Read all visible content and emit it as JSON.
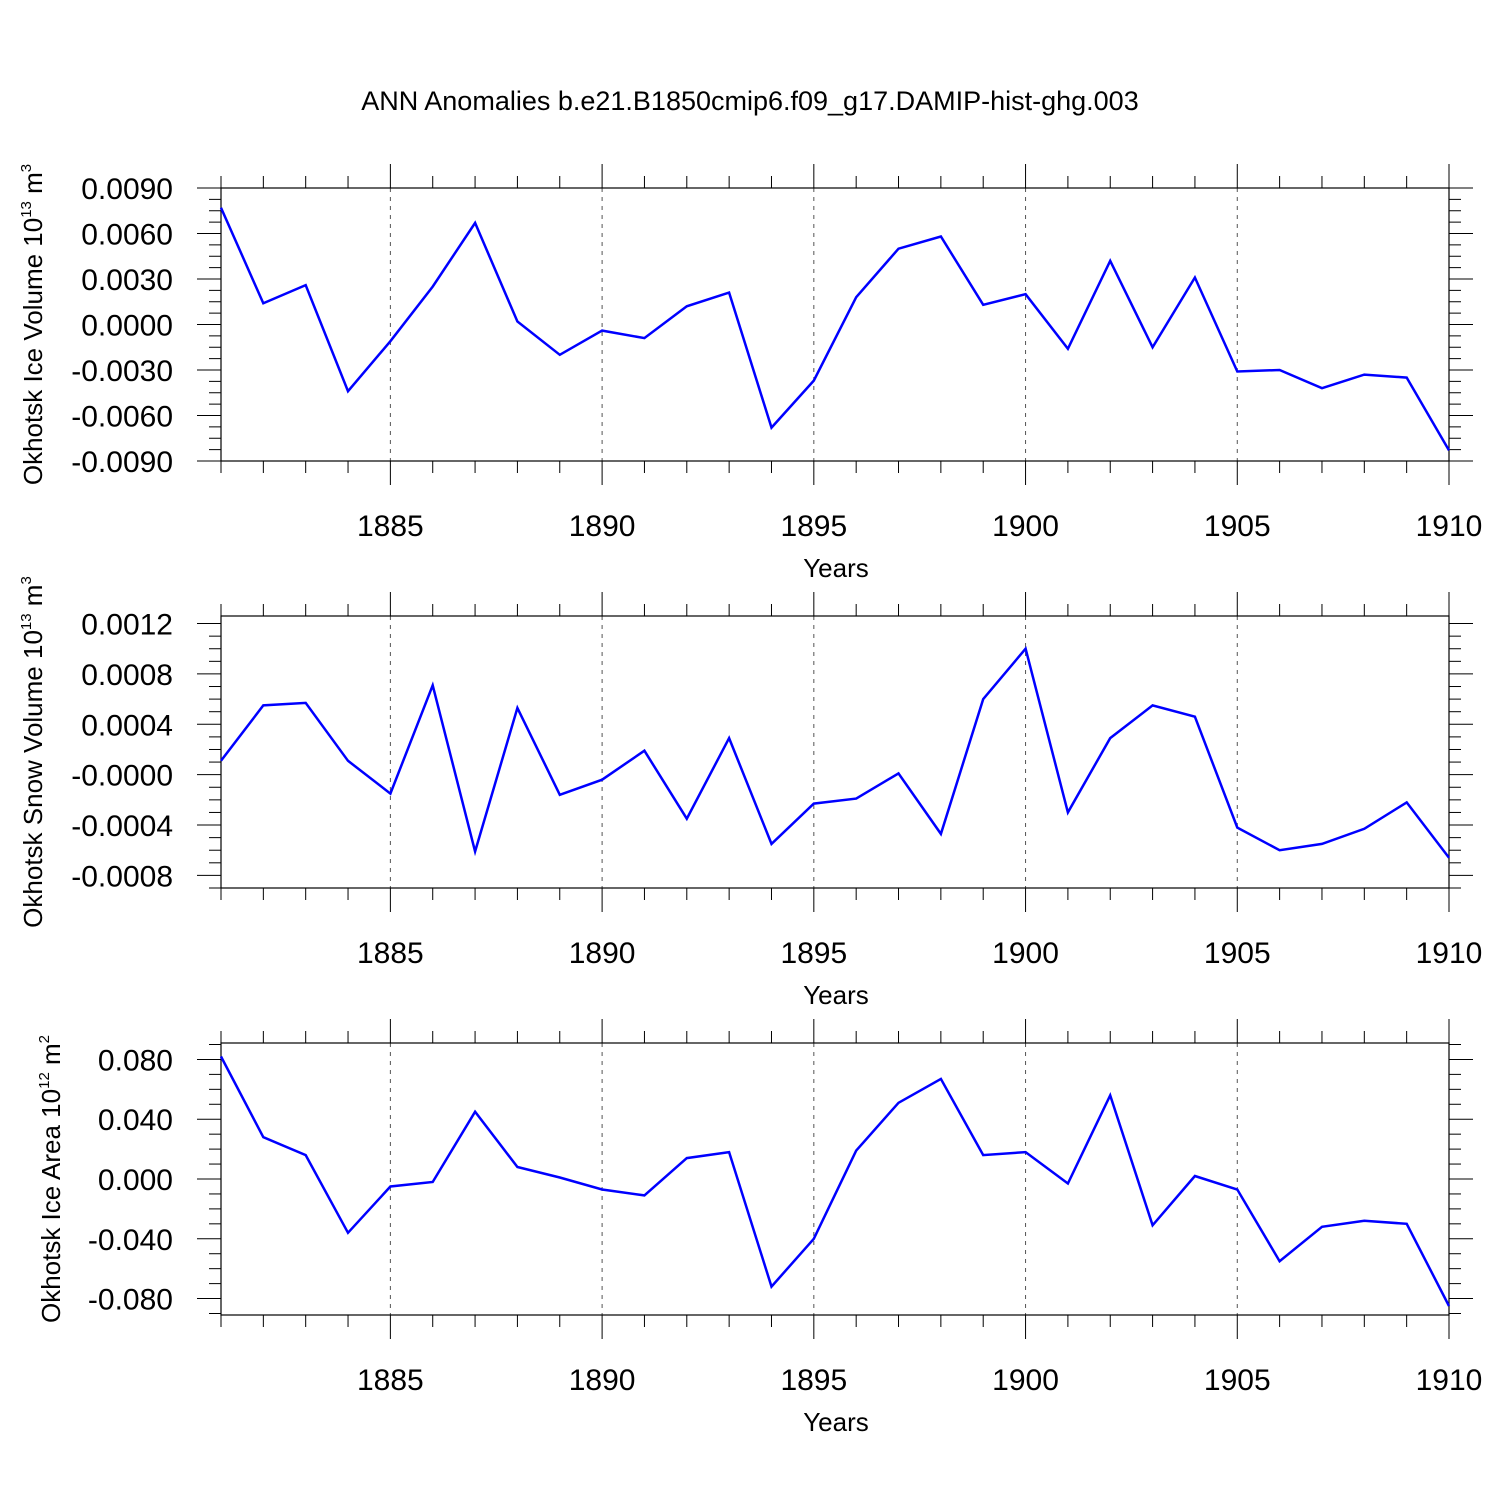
{
  "title": "ANN Anomalies b.e21.B1850cmip6.f09_g17.DAMIP-hist-ghg.003",
  "line_color": "#0000ff",
  "chart_data": [
    {
      "type": "line",
      "ylabel": "Okhotsk Ice Volume 10",
      "ylabel_exp": "13",
      "ylabel_unit": " m",
      "ylabel_unit_exp": "3",
      "xlabel": "Years",
      "xlim": [
        1881,
        1910
      ],
      "ylim": [
        -0.009,
        0.009
      ],
      "yticks": [
        0.009,
        0.006,
        0.003,
        0.0,
        -0.003,
        -0.006,
        -0.009
      ],
      "ytick_labels": [
        "0.0090",
        "0.0060",
        "0.0030",
        "0.0000",
        "-0.0030",
        "-0.0060",
        "-0.0090"
      ],
      "xticks": [
        1885,
        1890,
        1895,
        1900,
        1905,
        1910
      ],
      "xtick_labels": [
        "1885",
        "1890",
        "1895",
        "1900",
        "1905",
        "1910"
      ],
      "grid": "vertical dashed at major x ticks",
      "x": [
        1881,
        1882,
        1883,
        1884,
        1885,
        1886,
        1887,
        1888,
        1889,
        1890,
        1891,
        1892,
        1893,
        1894,
        1895,
        1896,
        1897,
        1898,
        1899,
        1900,
        1901,
        1902,
        1903,
        1904,
        1905,
        1906,
        1907,
        1908,
        1909,
        1910
      ],
      "series": [
        {
          "values": [
            0.0077,
            0.0014,
            0.0026,
            -0.0044,
            -0.0011,
            0.0025,
            0.0067,
            0.0002,
            -0.002,
            -0.0004,
            -0.0009,
            0.0012,
            0.0021,
            -0.0068,
            -0.0037,
            0.0018,
            0.005,
            0.0058,
            0.0013,
            0.002,
            -0.0016,
            0.0042,
            -0.0015,
            0.0031,
            -0.0031,
            -0.003,
            -0.0042,
            -0.0033,
            -0.0035,
            -0.0083
          ]
        }
      ]
    },
    {
      "type": "line",
      "ylabel": "Okhotsk Snow Volume 10",
      "ylabel_exp": "13",
      "ylabel_unit": " m",
      "ylabel_unit_exp": "3",
      "xlabel": "Years",
      "xlim": [
        1881,
        1910
      ],
      "ylim": [
        -0.0009,
        0.00126
      ],
      "yticks": [
        0.0012,
        0.0008,
        0.0004,
        0.0,
        -0.0004,
        -0.0008
      ],
      "ytick_labels": [
        "0.0012",
        "0.0008",
        "0.0004",
        "-0.0000",
        "-0.0004",
        "-0.0008"
      ],
      "xticks": [
        1885,
        1890,
        1895,
        1900,
        1905,
        1910
      ],
      "xtick_labels": [
        "1885",
        "1890",
        "1895",
        "1900",
        "1905",
        "1910"
      ],
      "grid": "vertical dashed at major x ticks",
      "x": [
        1881,
        1882,
        1883,
        1884,
        1885,
        1886,
        1887,
        1888,
        1889,
        1890,
        1891,
        1892,
        1893,
        1894,
        1895,
        1896,
        1897,
        1898,
        1899,
        1900,
        1901,
        1902,
        1903,
        1904,
        1905,
        1906,
        1907,
        1908,
        1909,
        1910
      ],
      "series": [
        {
          "values": [
            0.00011,
            0.00055,
            0.00057,
            0.00011,
            -0.00015,
            0.00071,
            -0.00061,
            0.00053,
            -0.00016,
            -4e-05,
            0.00019,
            -0.00035,
            0.00029,
            -0.00055,
            -0.00023,
            -0.00019,
            1e-05,
            -0.00047,
            0.0006,
            0.001,
            -0.0003,
            0.00029,
            0.00055,
            0.00046,
            -0.00042,
            -0.0006,
            -0.00055,
            -0.00043,
            -0.00022,
            -0.00066
          ]
        }
      ]
    },
    {
      "type": "line",
      "ylabel": "Okhotsk Ice Area 10",
      "ylabel_exp": "12",
      "ylabel_unit": " m",
      "ylabel_unit_exp": "2",
      "xlabel": "Years",
      "xlim": [
        1881,
        1910
      ],
      "ylim": [
        -0.091,
        0.091
      ],
      "yticks": [
        0.08,
        0.04,
        0.0,
        -0.04,
        -0.08
      ],
      "ytick_labels": [
        "0.080",
        "0.040",
        "0.000",
        "-0.040",
        "-0.080"
      ],
      "xticks": [
        1885,
        1890,
        1895,
        1900,
        1905,
        1910
      ],
      "xtick_labels": [
        "1885",
        "1890",
        "1895",
        "1900",
        "1905",
        "1910"
      ],
      "grid": "vertical dashed at major x ticks",
      "x": [
        1881,
        1882,
        1883,
        1884,
        1885,
        1886,
        1887,
        1888,
        1889,
        1890,
        1891,
        1892,
        1893,
        1894,
        1895,
        1896,
        1897,
        1898,
        1899,
        1900,
        1901,
        1902,
        1903,
        1904,
        1905,
        1906,
        1907,
        1908,
        1909,
        1910
      ],
      "series": [
        {
          "values": [
            0.082,
            0.028,
            0.016,
            -0.036,
            -0.005,
            -0.002,
            0.045,
            0.008,
            0.001,
            -0.007,
            -0.011,
            0.014,
            0.018,
            -0.072,
            -0.04,
            0.019,
            0.051,
            0.067,
            0.016,
            0.018,
            -0.003,
            0.056,
            -0.031,
            0.002,
            -0.007,
            -0.055,
            -0.032,
            -0.028,
            -0.03,
            -0.085
          ]
        }
      ]
    }
  ]
}
